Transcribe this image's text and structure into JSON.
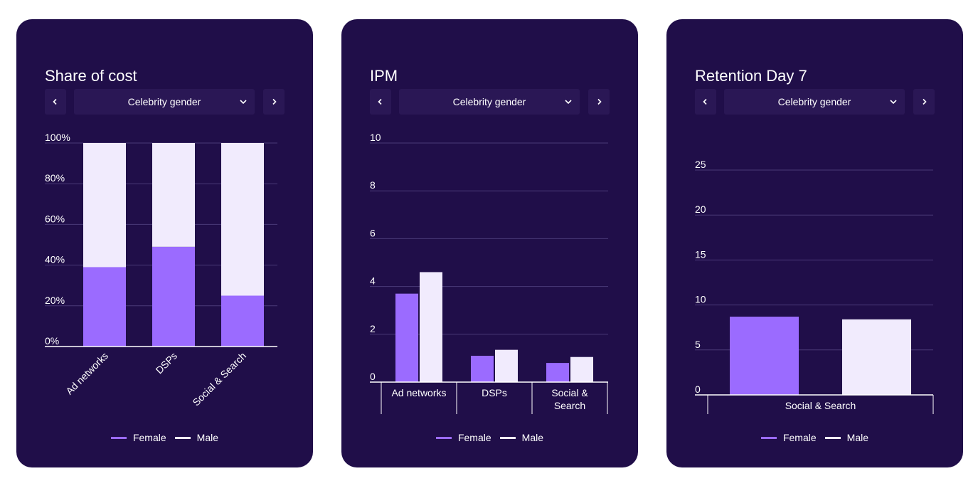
{
  "colors": {
    "card_bg": "#200e49",
    "female": "#9b6bff",
    "male": "#f1ebfd",
    "grid": "#4a3a78"
  },
  "cards": [
    {
      "title": "Share of cost",
      "selector": {
        "value": "Celebrity gender"
      },
      "legend": [
        {
          "label": "Female",
          "color": "#9b6bff"
        },
        {
          "label": "Male",
          "color": "#f1ebfd"
        }
      ]
    },
    {
      "title": "IPM",
      "selector": {
        "value": "Celebrity gender"
      },
      "legend": [
        {
          "label": "Female",
          "color": "#9b6bff"
        },
        {
          "label": "Male",
          "color": "#f1ebfd"
        }
      ]
    },
    {
      "title": "Retention Day 7",
      "selector": {
        "value": "Celebrity gender"
      },
      "legend": [
        {
          "label": "Female",
          "color": "#9b6bff"
        },
        {
          "label": "Male",
          "color": "#f1ebfd"
        }
      ]
    }
  ],
  "chart_data": [
    {
      "type": "bar",
      "stacked": true,
      "title": "Share of cost",
      "categories": [
        "Ad networks",
        "DSPs",
        "Social & Search"
      ],
      "series": [
        {
          "name": "Female",
          "values": [
            39,
            49,
            25
          ]
        },
        {
          "name": "Male",
          "values": [
            61,
            51,
            75
          ]
        }
      ],
      "ylim": [
        0,
        100
      ],
      "yticks": [
        "0%",
        "20%",
        "40%",
        "60%",
        "80%",
        "100%"
      ],
      "ytick_values": [
        0,
        20,
        40,
        60,
        80,
        100
      ],
      "grid": true,
      "legend_position": "bottom"
    },
    {
      "type": "bar",
      "stacked": false,
      "title": "IPM",
      "categories": [
        "Ad networks",
        "DSPs",
        "Social & Search"
      ],
      "category_display": [
        [
          "Ad networks"
        ],
        [
          "DSPs"
        ],
        [
          "Social &",
          "Search"
        ]
      ],
      "series": [
        {
          "name": "Female",
          "values": [
            3.7,
            1.1,
            0.8
          ]
        },
        {
          "name": "Male",
          "values": [
            4.6,
            1.35,
            1.05
          ]
        }
      ],
      "ylim": [
        0,
        10
      ],
      "yticks": [
        "0",
        "2",
        "4",
        "6",
        "8",
        "10"
      ],
      "ytick_values": [
        0,
        2,
        4,
        6,
        8,
        10
      ],
      "grid": true,
      "legend_position": "bottom"
    },
    {
      "type": "bar",
      "stacked": false,
      "title": "Retention Day 7",
      "categories": [
        "Social & Search"
      ],
      "series": [
        {
          "name": "Female",
          "values": [
            8.7
          ]
        },
        {
          "name": "Male",
          "values": [
            8.4
          ]
        }
      ],
      "ylim": [
        0,
        25
      ],
      "yticks": [
        "0",
        "5",
        "10",
        "15",
        "20",
        "25"
      ],
      "ytick_values": [
        0,
        5,
        10,
        15,
        20,
        25
      ],
      "grid": true,
      "legend_position": "bottom"
    }
  ]
}
